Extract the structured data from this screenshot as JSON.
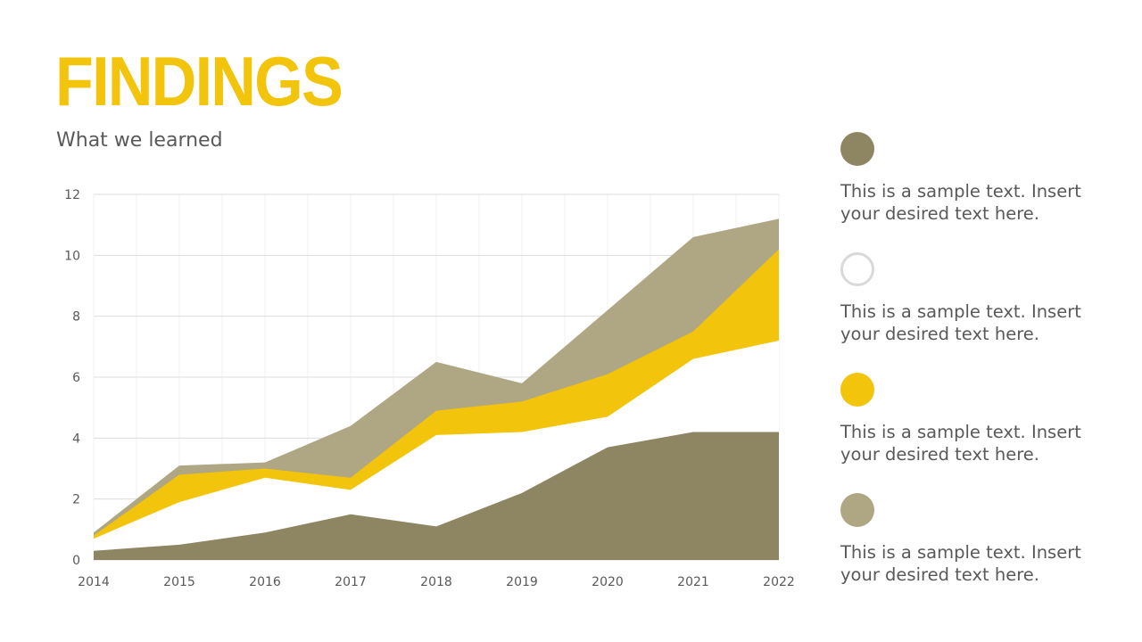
{
  "header": {
    "title": "FINDINGS",
    "subtitle": "What we learned"
  },
  "colors": {
    "accent": "#F2C40B",
    "olive_dark": "#8E8663",
    "olive_light": "#AFA683",
    "outline_gray": "#D9D9D9",
    "text_gray": "#595959",
    "grid": "#DDDDDD"
  },
  "chart_data": {
    "type": "area",
    "x": [
      "2014",
      "2015",
      "2016",
      "2017",
      "2018",
      "2019",
      "2020",
      "2021",
      "2022"
    ],
    "ylim": [
      0,
      12
    ],
    "yticks": [
      "0",
      "2",
      "4",
      "6",
      "8",
      "10",
      "12"
    ],
    "grid": true,
    "title": "",
    "xlabel": "",
    "ylabel": "",
    "series": [
      {
        "color": "#8E8663",
        "values": [
          0.3,
          0.5,
          0.9,
          1.5,
          1.1,
          2.2,
          3.7,
          4.2,
          4.2
        ]
      },
      {
        "color": "#FFFFFF",
        "values": [
          0.7,
          1.9,
          2.7,
          2.3,
          4.1,
          4.2,
          4.7,
          6.6,
          7.2
        ]
      },
      {
        "color": "#F2C40B",
        "values": [
          0.8,
          2.8,
          3.0,
          2.7,
          4.9,
          5.2,
          6.1,
          7.5,
          10.2
        ]
      },
      {
        "color": "#AFA683",
        "values": [
          0.9,
          3.1,
          3.2,
          4.4,
          6.5,
          5.8,
          8.2,
          10.6,
          11.2
        ]
      }
    ]
  },
  "legend": [
    {
      "color": "#8E8663",
      "style": "filled",
      "text": "This is a sample text. Insert your desired text here."
    },
    {
      "color": "#D9D9D9",
      "style": "outline",
      "text": "This is a sample text. Insert your desired text here."
    },
    {
      "color": "#F2C40B",
      "style": "filled",
      "text": "This is a sample text. Insert your desired text here."
    },
    {
      "color": "#AFA683",
      "style": "filled",
      "text": "This is a sample text. Insert your desired text here."
    }
  ]
}
